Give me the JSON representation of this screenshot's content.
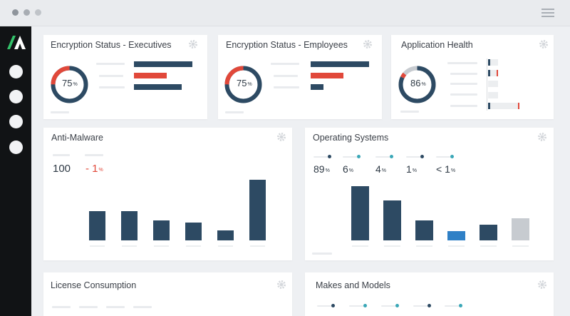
{
  "colors": {
    "navy": "#2d4a63",
    "red": "#e1483a",
    "gray": "#c7cbd0",
    "track": "#e3e6e9",
    "blue": "#2f80c6",
    "teal": "#3aa7b7",
    "sidebar": "#111315",
    "accent_green": "#33c26a"
  },
  "window": {
    "controls": [
      "window-dot",
      "window-dot",
      "window-dot"
    ],
    "menu_icon": "hamburger-icon"
  },
  "sidebar": {
    "logo_icon": "logo-icon",
    "items": [
      "nav-dot-1",
      "nav-dot-2",
      "nav-dot-3",
      "nav-dot-4"
    ]
  },
  "cards": {
    "enc_exec": {
      "title": "Encryption Status - Executives",
      "donut_value": "75",
      "donut_unit": "%",
      "donut_fraction": 0.75,
      "bars": [
        {
          "color": "navy",
          "fraction": 1.0
        },
        {
          "color": "red",
          "fraction": 0.56
        },
        {
          "color": "navy",
          "fraction": 0.82
        }
      ]
    },
    "enc_emp": {
      "title": "Encryption Status - Employees",
      "donut_value": "75",
      "donut_unit": "%",
      "donut_fraction": 0.75,
      "bars": [
        {
          "color": "navy",
          "fraction": 1.0
        },
        {
          "color": "red",
          "fraction": 0.56
        },
        {
          "color": "navy",
          "fraction": 0.22
        }
      ]
    },
    "app_health": {
      "title": "Application Health",
      "donut_value": "86",
      "donut_unit": "%",
      "donut_fraction": 0.86,
      "rows": [
        {
          "fill": 0.25,
          "red": false
        },
        {
          "fill": 0.25,
          "red": true
        },
        {
          "fill": 0.0,
          "red": false
        },
        {
          "fill": 0.0,
          "red": false
        },
        {
          "fill": 0.06,
          "red": true
        }
      ]
    },
    "anti_malware": {
      "title": "Anti-Malware",
      "stat1_value": "100",
      "stat2_value": "- 1",
      "stat2_unit": "%"
    },
    "os": {
      "title": "Operating Systems",
      "stats": [
        {
          "value": "89",
          "unit": "%",
          "dot": "navy"
        },
        {
          "value": "6",
          "unit": "%",
          "dot": "teal"
        },
        {
          "value": "4",
          "unit": "%",
          "dot": "teal"
        },
        {
          "value": "1",
          "unit": "%",
          "dot": "navy"
        },
        {
          "value": "< 1",
          "unit": "%",
          "dot": "teal"
        }
      ]
    },
    "license": {
      "title": "License Consumption"
    },
    "makes": {
      "title": "Makes and Models"
    }
  },
  "chart_data": [
    {
      "type": "bar",
      "name_ref": "anti_malware",
      "categories": [
        "",
        "",
        "",
        "",
        "",
        ""
      ],
      "values": [
        41,
        41,
        28,
        25,
        14,
        85
      ],
      "ylim": [
        0,
        100
      ],
      "colors": [
        "navy",
        "navy",
        "navy",
        "navy",
        "navy",
        "navy"
      ]
    },
    {
      "type": "bar",
      "name_ref": "os",
      "categories": [
        "",
        "",
        "",
        "",
        "",
        ""
      ],
      "values": [
        76,
        56,
        28,
        13,
        22,
        31
      ],
      "ylim": [
        0,
        100
      ],
      "colors": [
        "navy",
        "navy",
        "navy",
        "blue",
        "navy",
        "gray"
      ]
    }
  ]
}
